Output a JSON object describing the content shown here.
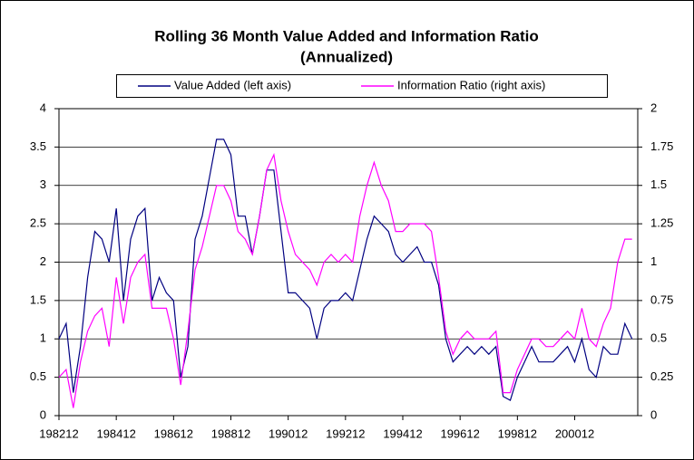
{
  "chart_data": {
    "type": "line",
    "title": [
      "Rolling 36 Month Value Added and Information Ratio",
      "(Annualized)"
    ],
    "categories": [
      "198212",
      null,
      null,
      null,
      null,
      null,
      null,
      null,
      "198412",
      null,
      null,
      null,
      null,
      null,
      null,
      null,
      "198612",
      null,
      null,
      null,
      null,
      null,
      null,
      null,
      "198812",
      null,
      null,
      null,
      null,
      null,
      null,
      null,
      "199012",
      null,
      null,
      null,
      null,
      null,
      null,
      null,
      "199212",
      null,
      null,
      null,
      null,
      null,
      null,
      null,
      "199412",
      null,
      null,
      null,
      null,
      null,
      null,
      null,
      "199612",
      null,
      null,
      null,
      null,
      null,
      null,
      null,
      "199812",
      null,
      null,
      null,
      null,
      null,
      null,
      null,
      "200012",
      null,
      null,
      null,
      null,
      null,
      null,
      null,
      null
    ],
    "series": [
      {
        "name": "Value Added (left axis)",
        "color": "#000080",
        "axis": "y",
        "values": [
          1.0,
          1.2,
          0.3,
          0.9,
          1.8,
          2.4,
          2.3,
          2.0,
          2.7,
          1.5,
          2.3,
          2.6,
          2.7,
          1.5,
          1.8,
          1.6,
          1.5,
          0.5,
          0.9,
          2.3,
          2.6,
          3.1,
          3.6,
          3.6,
          3.4,
          2.6,
          2.6,
          2.1,
          2.6,
          3.2,
          3.2,
          2.4,
          1.6,
          1.6,
          1.5,
          1.4,
          1.0,
          1.4,
          1.5,
          1.5,
          1.6,
          1.5,
          1.9,
          2.3,
          2.6,
          2.5,
          2.4,
          2.1,
          2.0,
          2.1,
          2.2,
          2.0,
          2.0,
          1.7,
          1.0,
          0.7,
          0.8,
          0.9,
          0.8,
          0.9,
          0.8,
          0.9,
          0.25,
          0.2,
          0.5,
          0.7,
          0.9,
          0.7,
          0.7,
          0.7,
          0.8,
          0.9,
          0.7,
          1.0,
          0.6,
          0.5,
          0.9,
          0.8,
          0.8,
          1.2,
          1.0
        ]
      },
      {
        "name": "Information Ratio (right axis)",
        "color": "#ff00ff",
        "axis": "y2",
        "values": [
          0.25,
          0.3,
          0.05,
          0.35,
          0.55,
          0.65,
          0.7,
          0.45,
          0.9,
          0.6,
          0.9,
          1.0,
          1.05,
          0.7,
          0.7,
          0.7,
          0.5,
          0.2,
          0.55,
          0.95,
          1.1,
          1.3,
          1.5,
          1.5,
          1.4,
          1.2,
          1.15,
          1.05,
          1.3,
          1.6,
          1.7,
          1.4,
          1.2,
          1.05,
          1.0,
          0.95,
          0.85,
          1.0,
          1.05,
          1.0,
          1.05,
          1.0,
          1.3,
          1.5,
          1.65,
          1.5,
          1.4,
          1.2,
          1.2,
          1.25,
          1.25,
          1.25,
          1.2,
          0.9,
          0.55,
          0.4,
          0.5,
          0.55,
          0.5,
          0.5,
          0.5,
          0.55,
          0.15,
          0.15,
          0.3,
          0.4,
          0.5,
          0.5,
          0.45,
          0.45,
          0.5,
          0.55,
          0.5,
          0.7,
          0.5,
          0.45,
          0.6,
          0.7,
          1.0,
          1.15,
          1.15
        ]
      }
    ],
    "ylim": [
      0,
      4
    ],
    "yticks": [
      0,
      0.5,
      1,
      1.5,
      2,
      2.5,
      3,
      3.5,
      4
    ],
    "y2lim": [
      0,
      2
    ],
    "y2ticks": [
      0,
      0.25,
      0.5,
      0.75,
      1,
      1.25,
      1.5,
      1.75,
      2
    ],
    "grid": true,
    "legend": "top"
  }
}
